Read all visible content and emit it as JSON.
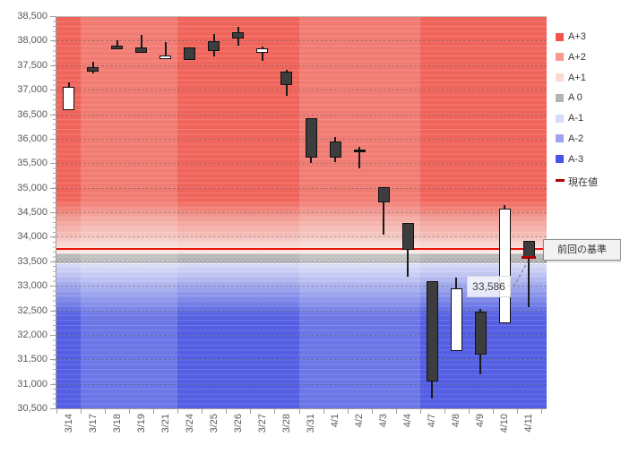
{
  "chart_data": {
    "type": "candlestick",
    "title": "",
    "y_axis": {
      "min": 30500,
      "max": 38500,
      "interval": 500,
      "tick_labels": [
        "38,500",
        "38,000",
        "37,500",
        "37,000",
        "36,500",
        "36,000",
        "35,500",
        "35,000",
        "34,500",
        "34,000",
        "33,500",
        "33,000",
        "32,500",
        "32,000",
        "31,500",
        "31,000",
        "30,500"
      ]
    },
    "x_axis": {
      "tick_labels": [
        "3/14",
        "3/17",
        "3/18",
        "3/19",
        "3/21",
        "3/24",
        "3/25",
        "3/26",
        "3/27",
        "3/28",
        "3/31",
        "4/1",
        "4/2",
        "4/3",
        "4/4",
        "4/7",
        "4/8",
        "4/9",
        "4/10",
        "4/11"
      ]
    },
    "candles": [
      {
        "date": "3/14",
        "open": 36585,
        "high": 37155,
        "low": 36585,
        "close": 37060
      },
      {
        "date": "3/17",
        "open": 37460,
        "high": 37560,
        "low": 37335,
        "close": 37370
      },
      {
        "date": "3/18",
        "open": 37900,
        "high": 38000,
        "low": 37820,
        "close": 37820
      },
      {
        "date": "3/19",
        "open": 37855,
        "high": 38110,
        "low": 37745,
        "close": 37745
      },
      {
        "date": "3/21",
        "open": 37630,
        "high": 37975,
        "low": 37630,
        "close": 37700
      },
      {
        "date": "3/24",
        "open": 37855,
        "high": 37855,
        "low": 37600,
        "close": 37600
      },
      {
        "date": "3/25",
        "open": 37995,
        "high": 38130,
        "low": 37685,
        "close": 37790
      },
      {
        "date": "3/26",
        "open": 38175,
        "high": 38280,
        "low": 37900,
        "close": 38040
      },
      {
        "date": "3/27",
        "open": 37750,
        "high": 37885,
        "low": 37580,
        "close": 37840
      },
      {
        "date": "3/28",
        "open": 37370,
        "high": 37400,
        "low": 36880,
        "close": 37095
      },
      {
        "date": "3/31",
        "open": 36425,
        "high": 36425,
        "low": 35510,
        "close": 35605
      },
      {
        "date": "4/1",
        "open": 35940,
        "high": 36040,
        "low": 35525,
        "close": 35605
      },
      {
        "date": "4/2",
        "open": 35750,
        "high": 35830,
        "low": 35390,
        "close": 35750
      },
      {
        "date": "4/3",
        "open": 35005,
        "high": 35005,
        "low": 34050,
        "close": 34700
      },
      {
        "date": "4/4",
        "open": 34275,
        "high": 34275,
        "low": 33180,
        "close": 33730
      },
      {
        "date": "4/7",
        "open": 33095,
        "high": 33095,
        "low": 30705,
        "close": 31040
      },
      {
        "date": "4/8",
        "open": 31660,
        "high": 33170,
        "low": 31660,
        "close": 32955
      },
      {
        "date": "4/9",
        "open": 32470,
        "high": 32530,
        "low": 31190,
        "close": 31600
      },
      {
        "date": "4/10",
        "open": 32240,
        "high": 34650,
        "low": 32240,
        "close": 34580
      },
      {
        "date": "4/11",
        "open": 33910,
        "high": 33910,
        "low": 32570,
        "close": 33586
      }
    ],
    "legend": [
      {
        "label": "A+3",
        "swatch": "square",
        "color": "#f25348"
      },
      {
        "label": "A+2",
        "swatch": "square",
        "color": "#f69a91"
      },
      {
        "label": "A+1",
        "swatch": "square",
        "color": "#fbd8d3"
      },
      {
        "label": "A 0",
        "swatch": "square",
        "color": "#b5b5b5"
      },
      {
        "label": "A-1",
        "swatch": "square",
        "color": "#d7dbfa"
      },
      {
        "label": "A-2",
        "swatch": "square",
        "color": "#9da5f1"
      },
      {
        "label": "A-3",
        "swatch": "square",
        "color": "#4a53e5"
      },
      {
        "label": "現在値",
        "swatch": "dash",
        "color": "#b00000"
      }
    ],
    "background": {
      "gradient_stops": [
        {
          "value": 38500,
          "color": "#f4675d"
        },
        {
          "value": 34750,
          "color": "#f4675d"
        },
        {
          "value": 34400,
          "color": "#f69d94"
        },
        {
          "value": 34050,
          "color": "#f9c0ba"
        },
        {
          "value": 33820,
          "color": "#fcdcd7"
        },
        {
          "value": 33670,
          "color": "#fdedeb"
        },
        {
          "value": 33640,
          "color": "#c6c6c6"
        },
        {
          "value": 33620,
          "color": "#bababa"
        },
        {
          "value": 33480,
          "color": "#b7b7b7"
        },
        {
          "value": 33450,
          "color": "#d9ddf9"
        },
        {
          "value": 33270,
          "color": "#c8cdf7"
        },
        {
          "value": 33100,
          "color": "#b0b7f3"
        },
        {
          "value": 32900,
          "color": "#98a1f0"
        },
        {
          "value": 32700,
          "color": "#7e89ec"
        },
        {
          "value": 32400,
          "color": "#5a65e7"
        },
        {
          "value": 32250,
          "color": "#5560e6"
        },
        {
          "value": 30500,
          "color": "#5560e6"
        }
      ],
      "white_dashed_level": 33455,
      "light_week_slots": [
        [
          1,
          4
        ],
        [
          10,
          14
        ]
      ]
    },
    "baseline": {
      "label": "前回の基準",
      "value": 33760,
      "color": "#e8140c"
    },
    "current": {
      "label": "33,586",
      "value": 33586,
      "color": "#b00000"
    },
    "grid": "dashed-horizontal",
    "legend_position": "right"
  }
}
